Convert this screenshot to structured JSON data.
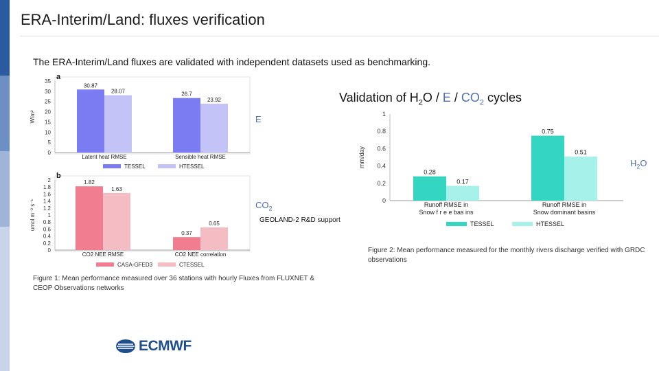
{
  "slide": {
    "title": "ERA-Interim/Land: fluxes verification",
    "intro": "The ERA-Interim/Land fluxes  are validated with independent datasets used as benchmarking.",
    "validation_prefix": "Validation of H",
    "validation_sub1": "2",
    "validation_mid": "O / ",
    "validation_e": "E",
    "validation_slash": "  / ",
    "validation_co": "CO",
    "validation_sub2": "2",
    "validation_suffix": " cycles",
    "label_e": "E",
    "label_h2o_h": "H",
    "label_h2o_sub": "2",
    "label_h2o_o": "O",
    "label_co2": "CO",
    "label_co2_sub": "2",
    "geoland": "GEOLAND-2 R&D support",
    "figure1_caption": "Figure 1: Mean performance measured over 36 stations with hourly Fluxes from FLUXNET & CEOP Observations networks",
    "figure2_caption": "Figure 2: Mean performance measured for the monthly rivers discharge verified with GRDC observations",
    "logo_text": "ECMWF",
    "logo_icon": "ecmwf-logo-icon"
  },
  "colors": {
    "tessel": "#7b7bf2",
    "htessel": "#c3c3f7",
    "casa": "#f07d90",
    "ctessel": "#f4bcc3",
    "runoff_tessel": "#35d6c1",
    "runoff_htessel": "#a6f1ea",
    "sidebar": [
      "#2a5aa0",
      "#6e8fc4",
      "#9fb4d8",
      "#c8d4e9"
    ]
  },
  "chart_data": [
    {
      "type": "bar",
      "panel_label": "a",
      "categories": [
        "Latent heat RMSE",
        "Sensible heat RMSE"
      ],
      "series": [
        {
          "name": "TESSEL",
          "values": [
            30.87,
            26.7
          ]
        },
        {
          "name": "HTESSEL",
          "values": [
            28.07,
            23.92
          ]
        }
      ],
      "value_labels": [
        [
          "30.87",
          "26.7"
        ],
        [
          "28.07",
          "23.92"
        ]
      ],
      "ylabel": "W/m²",
      "ylim": [
        0,
        35
      ],
      "yticks": [
        "0",
        "5",
        "10",
        "15",
        "20",
        "25",
        "30",
        "35"
      ],
      "legend_placement": "bottom"
    },
    {
      "type": "bar",
      "panel_label": "b",
      "categories": [
        "CO2 NEE RMSE",
        "CO2 NEE correlation"
      ],
      "series": [
        {
          "name": "CASA-GFED3",
          "values": [
            1.82,
            0.37
          ]
        },
        {
          "name": "CTESSEL",
          "values": [
            1.63,
            0.65
          ]
        }
      ],
      "value_labels": [
        [
          "1.82",
          "0.37"
        ],
        [
          "1.63",
          "0.65"
        ]
      ],
      "ylabel": "umol m⁻² s⁻¹",
      "ylim": [
        0,
        2
      ],
      "yticks": [
        "0",
        "0.2",
        "0.4",
        "0.6",
        "0.8",
        "1",
        "1.2",
        "1.4",
        "1.6",
        "1.8",
        "2"
      ],
      "legend_placement": "bottom"
    },
    {
      "type": "bar",
      "categories": [
        "Runoff RMSE in Snow free basins",
        "Runoff RMSE in Snow dominant basins"
      ],
      "category_lines": [
        [
          "Runoff RMSE in",
          "Snow f r e e    bas ins"
        ],
        [
          "Runoff RMSE in",
          "Snow dominant basins"
        ]
      ],
      "series": [
        {
          "name": "TESSEL",
          "values": [
            0.28,
            0.75
          ]
        },
        {
          "name": "HTESSEL",
          "values": [
            0.17,
            0.51
          ]
        }
      ],
      "value_labels": [
        [
          "0.28",
          "0.75"
        ],
        [
          "0.17",
          "0.51"
        ]
      ],
      "ylabel": "mm/day",
      "ylim": [
        0,
        1
      ],
      "yticks": [
        "0",
        "0.2",
        "0.4",
        "0.6",
        "0.8",
        "1"
      ],
      "legend_placement": "bottom"
    }
  ]
}
